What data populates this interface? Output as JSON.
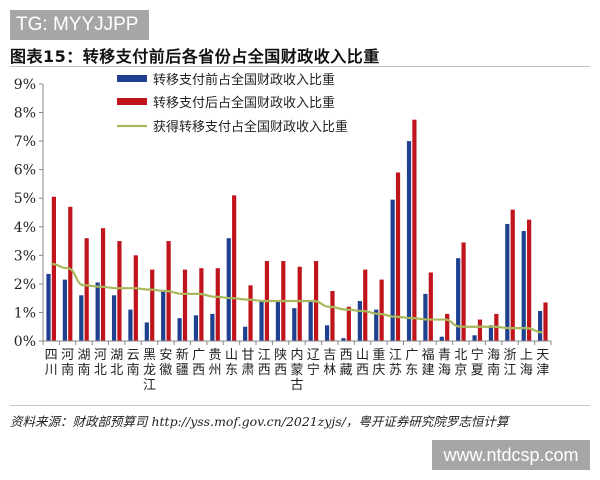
{
  "watermark_top": "TG: MYYJJPP",
  "watermark_bottom": "www.ntdcsp.com",
  "title": "图表15：转移支付前后各省份占全国财政收入比重",
  "source": "资料来源：财政部预算司 http://yss.mof.gov.cn/2021zyjs/，粤开证券研究院罗志恒计算",
  "colors": {
    "before": "#1f3f8f",
    "after": "#c0141c",
    "line": "#a8b85a",
    "axis": "#888888"
  },
  "chart_data": {
    "type": "bar",
    "title": "图表15：转移支付前后各省份占全国财政收入比重",
    "xlabel": "",
    "ylabel": "",
    "ylim": [
      0,
      9
    ],
    "yticks": [
      "0%",
      "1%",
      "2%",
      "3%",
      "4%",
      "5%",
      "6%",
      "7%",
      "8%",
      "9%"
    ],
    "grid": false,
    "legend_position": "top-center",
    "categories": [
      "四川",
      "河南",
      "湖南",
      "河北",
      "湖北",
      "云南",
      "黑龙江",
      "安徽",
      "新疆",
      "广西",
      "贵州",
      "山东",
      "甘肃",
      "江西",
      "陕西",
      "内蒙古",
      "辽宁",
      "吉林",
      "西藏",
      "山西",
      "重庆",
      "江苏",
      "广东",
      "福建",
      "青海",
      "北京",
      "宁夏",
      "海南",
      "浙江",
      "上海",
      "天津"
    ],
    "series": [
      {
        "name": "转移支付前占全国财政收入比重",
        "type": "bar",
        "values": [
          2.35,
          2.15,
          1.6,
          2.05,
          1.6,
          1.1,
          0.65,
          1.75,
          0.8,
          0.9,
          0.95,
          3.6,
          0.5,
          1.4,
          1.4,
          1.15,
          1.4,
          0.55,
          0.1,
          1.4,
          1.1,
          4.95,
          7.0,
          1.65,
          0.15,
          2.9,
          0.2,
          0.55,
          4.1,
          3.85,
          1.05
        ]
      },
      {
        "name": "转移支付后占全国财政收入比重",
        "type": "bar",
        "values": [
          5.05,
          4.7,
          3.6,
          3.95,
          3.5,
          3.0,
          2.5,
          3.5,
          2.5,
          2.55,
          2.55,
          5.1,
          1.95,
          2.8,
          2.8,
          2.6,
          2.8,
          1.75,
          1.2,
          2.5,
          2.15,
          5.9,
          7.75,
          2.4,
          0.95,
          3.45,
          0.75,
          0.95,
          4.6,
          4.25,
          1.35
        ]
      },
      {
        "name": "获得转移支付占全国财政收入比重",
        "type": "line",
        "values": [
          2.7,
          2.55,
          1.95,
          1.9,
          1.85,
          1.85,
          1.8,
          1.75,
          1.65,
          1.65,
          1.55,
          1.5,
          1.45,
          1.4,
          1.4,
          1.4,
          1.4,
          1.2,
          1.1,
          1.05,
          0.95,
          0.85,
          0.8,
          0.75,
          0.75,
          0.5,
          0.5,
          0.5,
          0.45,
          0.45,
          0.3
        ]
      }
    ]
  }
}
